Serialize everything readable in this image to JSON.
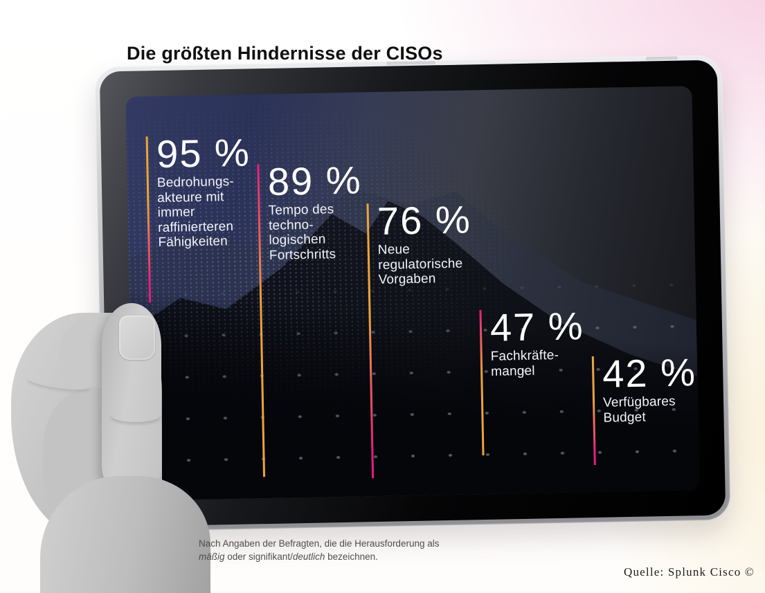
{
  "title": "Die größten Hindernisse der CISOs",
  "screen": {
    "stats": [
      {
        "value": "95 %",
        "label": "Bedrohungs-\nakteure mit\nimmer\nraffinierteren\nFähigkeiten",
        "gradient": "orange-to-magenta"
      },
      {
        "value": "89 %",
        "label": "Tempo des\ntechno-\nlogischen\nFortschritts",
        "gradient": "magenta-to-orange"
      },
      {
        "value": "76 %",
        "label": "Neue\nregulatorische\nVorgaben",
        "gradient": "orange-to-magenta"
      },
      {
        "value": "47 %",
        "label": "Fachkräfte-\nmangel",
        "gradient": "magenta-to-orange"
      },
      {
        "value": "42 %",
        "label": "Verfügbares\nBudget",
        "gradient": "orange-to-magenta"
      }
    ]
  },
  "footnote": {
    "line1": "Nach Angaben der Befragten, die die Herausforderung als",
    "line2_italic1": "mäßig",
    "line2_mid": " oder signifikant/",
    "line2_italic2": "deutlich",
    "line2_end": " bezeichnen."
  },
  "source": "Quelle: Splunk Cisco ©",
  "colors": {
    "accent_orange": "#EDA43B",
    "accent_magenta": "#E81C7E",
    "screen_navy": "#2B3258",
    "background_pink": "#F7DDE9",
    "background_cream": "#FAF0DC"
  },
  "chart_data": {
    "type": "bar",
    "title": "Die größten Hindernisse der CISOs",
    "categories": [
      "Bedrohungsakteure mit immer raffinierteren Fähigkeiten",
      "Tempo des technologischen Fortschritts",
      "Neue regulatorische Vorgaben",
      "Fachkräftemangel",
      "Verfügbares Budget"
    ],
    "values": [
      95,
      89,
      76,
      47,
      42
    ],
    "unit": "%",
    "xlabel": "",
    "ylabel": "",
    "ylim": [
      0,
      100
    ],
    "legend": false,
    "note": "Nach Angaben der Befragten, die die Herausforderung als mäßig oder signifikant/deutlich bezeichnen.",
    "source": "Quelle: Splunk Cisco ©"
  }
}
